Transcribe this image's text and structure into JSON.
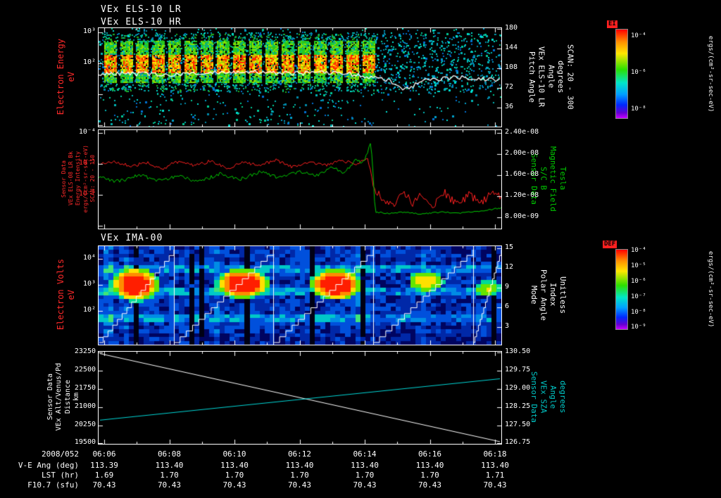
{
  "colors": {
    "background": "#000000",
    "axis": "#ffffff",
    "label_red": "#ff2a2a",
    "label_green": "#00cc00",
    "label_cyan": "#00c8c8",
    "trace_red": "#ff2020",
    "trace_green": "#00cc00",
    "trace_white": "#ffffff",
    "trace_cyan": "#00d8d8",
    "colorbar_tag_bg": "#ff2020"
  },
  "titles": {
    "els_lr": "VEx ELS-10 LR",
    "els_hr": "VEx ELS-10 HR",
    "ima": "VEx IMA-00"
  },
  "panel1": {
    "left_label_lines": [
      "Electron Energy",
      "eV"
    ],
    "left_ticks": [
      {
        "label": "10³",
        "t": 6
      },
      {
        "label": "10²",
        "t": 50
      }
    ],
    "right_ticks": [
      {
        "label": "180",
        "t": 1
      },
      {
        "label": "144",
        "t": 29
      },
      {
        "label": "108",
        "t": 57
      },
      {
        "label": "72",
        "t": 85
      },
      {
        "label": "36",
        "t": 113
      }
    ],
    "right_label_lines": [
      "Pitch Angle",
      "VEx ELS-10 LR",
      "Angle",
      "degrees",
      "SCAN: 20 - 300"
    ],
    "colorbar": {
      "tag": "EI",
      "ticks": [
        {
          "label": "10⁻⁴",
          "t": 10
        },
        {
          "label": "10⁻⁶",
          "t": 62
        },
        {
          "label": "10⁻⁸",
          "t": 114
        }
      ],
      "units": "ergs/(cm²-sr-sec-eV)"
    }
  },
  "panel2": {
    "left_label_lines": [
      "Sensor Data",
      "VEx ELS-08 LR Bk",
      "Energy Intensity",
      "ergs/(cm²-sr-sec-eV)",
      "SCAN: 20 - 150"
    ],
    "left_ticks": [
      {
        "label": "10⁻⁴",
        "t": 4,
        "color": "#ffffff"
      },
      {
        "label": "10⁻⁵",
        "t": 48,
        "color": "#ff2a2a"
      },
      {
        "label": "10⁻⁶",
        "t": 92,
        "color": "#ff2a2a"
      }
    ],
    "right_ticks": [
      {
        "label": "2.40e-08",
        "t": 4
      },
      {
        "label": "2.00e-08",
        "t": 34
      },
      {
        "label": "1.60e-08",
        "t": 64
      },
      {
        "label": "1.20e-08",
        "t": 94
      },
      {
        "label": "8.00e-09",
        "t": 124
      }
    ],
    "right_label_lines": [
      "Sensor Data",
      "S/C B",
      "Magnetic Field",
      "Tesla"
    ]
  },
  "panel3": {
    "left_label_lines": [
      "Electron Volts",
      "eV"
    ],
    "left_ticks": [
      {
        "label": "10⁴",
        "t": 18
      },
      {
        "label": "10³",
        "t": 55
      },
      {
        "label": "10²",
        "t": 92
      }
    ],
    "right_ticks": [
      {
        "label": "15",
        "t": 3
      },
      {
        "label": "12",
        "t": 31
      },
      {
        "label": "9",
        "t": 59
      },
      {
        "label": "6",
        "t": 87
      },
      {
        "label": "3",
        "t": 115
      }
    ],
    "right_label_lines": [
      "Mode",
      "Polar Angle",
      "Index",
      "Unitless"
    ],
    "colorbar": {
      "tag": "DEF",
      "ticks": [
        {
          "label": "10⁻⁴",
          "t": 2
        },
        {
          "label": "10⁻⁵",
          "t": 24
        },
        {
          "label": "10⁻⁶",
          "t": 46
        },
        {
          "label": "10⁻⁷",
          "t": 68
        },
        {
          "label": "10⁻⁸",
          "t": 90
        },
        {
          "label": "10⁻⁹",
          "t": 111
        }
      ],
      "units": "ergs/(cm²-sr-sec-eV)"
    }
  },
  "panel4": {
    "left_label_lines": [
      "Sensor Data",
      "VEx Alt/Venus/Pd",
      "Distance",
      "km"
    ],
    "left_ticks": [
      {
        "label": "23250",
        "t": 1
      },
      {
        "label": "22500",
        "t": 27
      },
      {
        "label": "21750",
        "t": 53
      },
      {
        "label": "21000",
        "t": 79
      },
      {
        "label": "20250",
        "t": 105
      },
      {
        "label": "19500",
        "t": 130
      }
    ],
    "right_ticks": [
      {
        "label": "130.50",
        "t": 1
      },
      {
        "label": "129.75",
        "t": 27
      },
      {
        "label": "129.00",
        "t": 53
      },
      {
        "label": "128.25",
        "t": 79
      },
      {
        "label": "127.50",
        "t": 105
      },
      {
        "label": "126.75",
        "t": 130
      }
    ],
    "right_label_lines": [
      "Sensor Data",
      "VEx SZA",
      "Angle",
      "degrees"
    ]
  },
  "table": {
    "rows": [
      {
        "label": "2008/052",
        "values": [
          "06:06",
          "06:08",
          "06:10",
          "06:12",
          "06:14",
          "06:16",
          "06:18"
        ]
      },
      {
        "label": "V-E Ang (deg)",
        "values": [
          "113.39",
          "113.40",
          "113.40",
          "113.40",
          "113.40",
          "113.40",
          "113.40"
        ]
      },
      {
        "label": "LST (hr)",
        "values": [
          "1.69",
          "1.70",
          "1.70",
          "1.70",
          "1.70",
          "1.70",
          "1.71"
        ]
      },
      {
        "label": "F10.7 (sfu)",
        "values": [
          "70.43",
          "70.43",
          "70.43",
          "70.43",
          "70.43",
          "70.43",
          "70.43"
        ]
      }
    ]
  },
  "chart_data": [
    {
      "type": "heatmap",
      "panel": "VEx ELS-10 LR/HR electron energy-time spectrogram",
      "x_ticks": [
        "06:06",
        "06:08",
        "06:10",
        "06:12",
        "06:14",
        "06:16",
        "06:18"
      ],
      "y_axis": {
        "label": "Electron Energy (eV)",
        "scale": "log",
        "ticks": [
          "10³",
          "10²"
        ]
      },
      "right_axis": {
        "label": "Pitch Angle VEx ELS-10 LR Angle degrees SCAN: 20 - 300",
        "ticks": [
          180,
          144,
          108,
          72,
          36
        ]
      },
      "colorbar": {
        "tag": "EI",
        "units": "ergs/(cm²-sr-sec-eV)",
        "ticks": [
          "10⁻⁴",
          "10⁻⁶",
          "10⁻⁸"
        ]
      },
      "transition_frac": 0.683,
      "blocks": {
        "start_frac": 0.014,
        "end_frac": 0.687,
        "period_frac": 0.0402,
        "width_frac": 0.0297,
        "y_top_frac": 0.13,
        "y_bot_frac": 0.545,
        "core_top_frac": 0.27,
        "core_bot_frac": 0.445
      },
      "white_line": [
        [
          0,
          0.46
        ],
        [
          0.2,
          0.47
        ],
        [
          0.35,
          0.44
        ],
        [
          0.5,
          0.46
        ],
        [
          0.6,
          0.45
        ],
        [
          0.68,
          0.5
        ],
        [
          0.72,
          0.53
        ],
        [
          0.76,
          0.63
        ],
        [
          0.8,
          0.54
        ],
        [
          0.88,
          0.5
        ],
        [
          1,
          0.53
        ]
      ]
    },
    {
      "type": "line",
      "panel": "ELS energy intensity (red, log) and S/C magnetic field (green, linear)",
      "left_axis": {
        "scale": "log",
        "ticks": [
          "10⁻⁴",
          "10⁻⁵",
          "10⁻⁶"
        ]
      },
      "right_axis": {
        "label": "S/C B Magnetic Field (Tesla)",
        "top": 2.4e-08,
        "bottom": 8e-09
      },
      "transition_frac": 0.683,
      "series": [
        {
          "name": "VEx ELS-08 LR Bk Energy Intensity",
          "color": "red",
          "points_log10": [
            [
              0,
              -5.0
            ],
            [
              0.04,
              -4.92
            ],
            [
              0.08,
              -5.08
            ],
            [
              0.12,
              -4.95
            ],
            [
              0.16,
              -5.2
            ],
            [
              0.19,
              -4.93
            ],
            [
              0.24,
              -5.05
            ],
            [
              0.28,
              -4.9
            ],
            [
              0.32,
              -5.15
            ],
            [
              0.36,
              -4.95
            ],
            [
              0.4,
              -5.05
            ],
            [
              0.44,
              -4.88
            ],
            [
              0.48,
              -5.1
            ],
            [
              0.52,
              -4.95
            ],
            [
              0.56,
              -5.05
            ],
            [
              0.6,
              -4.9
            ],
            [
              0.64,
              -5.0
            ],
            [
              0.667,
              -4.82
            ],
            [
              0.675,
              -5.2
            ],
            [
              0.682,
              -5.7
            ],
            [
              0.7,
              -6.1
            ],
            [
              0.73,
              -6.35
            ],
            [
              0.755,
              -5.85
            ],
            [
              0.78,
              -6.3
            ],
            [
              0.8,
              -5.9
            ],
            [
              0.83,
              -6.35
            ],
            [
              0.86,
              -5.95
            ],
            [
              0.89,
              -6.3
            ],
            [
              0.92,
              -6.0
            ],
            [
              0.95,
              -6.3
            ],
            [
              0.975,
              -5.9
            ],
            [
              1,
              -6.1
            ]
          ]
        },
        {
          "name": "S/C B",
          "color": "green",
          "points_1e8_tesla": [
            [
              0,
              1.55
            ],
            [
              0.05,
              1.48
            ],
            [
              0.1,
              1.6
            ],
            [
              0.15,
              1.5
            ],
            [
              0.2,
              1.58
            ],
            [
              0.25,
              1.47
            ],
            [
              0.3,
              1.62
            ],
            [
              0.35,
              1.52
            ],
            [
              0.4,
              1.66
            ],
            [
              0.45,
              1.55
            ],
            [
              0.5,
              1.68
            ],
            [
              0.54,
              1.58
            ],
            [
              0.58,
              1.75
            ],
            [
              0.61,
              1.65
            ],
            [
              0.64,
              1.9
            ],
            [
              0.655,
              1.8
            ],
            [
              0.668,
              2.05
            ],
            [
              0.675,
              2.18
            ],
            [
              0.68,
              1.9
            ],
            [
              0.684,
              1.2
            ],
            [
              0.688,
              0.9
            ],
            [
              0.72,
              0.87
            ],
            [
              0.76,
              0.9
            ],
            [
              0.8,
              0.86
            ],
            [
              0.85,
              0.9
            ],
            [
              0.9,
              0.88
            ],
            [
              0.95,
              0.92
            ],
            [
              1,
              0.98
            ]
          ]
        }
      ]
    },
    {
      "type": "heatmap",
      "panel": "VEx IMA-00 ion energy-time spectrogram",
      "y_axis": {
        "label": "Electron Volts (eV)",
        "scale": "log",
        "ticks": [
          "10⁴",
          "10³",
          "10²"
        ]
      },
      "right_axis": {
        "label": "Mode Polar Angle Index Unitless",
        "ticks": [
          15,
          12,
          9,
          6,
          3
        ]
      },
      "colorbar": {
        "tag": "DEF",
        "units": "ergs/(cm²-sr-sec-eV)",
        "ticks": [
          "10⁻⁴",
          "10⁻⁵",
          "10⁻⁶",
          "10⁻⁷",
          "10⁻⁸",
          "10⁻⁹"
        ]
      },
      "segments_frac": [
        0,
        0.187,
        0.434,
        0.682,
        0.93,
        1
      ],
      "stair_steps": 16,
      "n_rows": 26,
      "n_cols": 80,
      "bright_rows": [
        5,
        6,
        11,
        12,
        18,
        19
      ],
      "blobs": [
        {
          "cx": 0.091,
          "cy": 0.39,
          "rx": 0.066,
          "ry": 0.19,
          "s": 1.0
        },
        {
          "cx": 0.358,
          "cy": 0.38,
          "rx": 0.073,
          "ry": 0.17,
          "s": 1.0
        },
        {
          "cx": 0.589,
          "cy": 0.39,
          "rx": 0.07,
          "ry": 0.18,
          "s": 1.0
        },
        {
          "cx": 0.813,
          "cy": 0.36,
          "rx": 0.052,
          "ry": 0.13,
          "s": 0.55
        },
        {
          "cx": 0.965,
          "cy": 0.43,
          "rx": 0.038,
          "ry": 0.1,
          "s": 0.45
        }
      ]
    },
    {
      "type": "line",
      "panel": "VEx altitude (white) and solar zenith angle (cyan)",
      "left_axis": {
        "label": "VEx Alt/Venus/Pd Distance (km)",
        "top": 23250,
        "bottom": 19500
      },
      "right_axis": {
        "label": "VEx SZA Angle (degrees)",
        "top": 130.5,
        "bottom": 126.75
      },
      "series": [
        {
          "name": "VEx Alt/Venus/Pd",
          "color": "white",
          "points": [
            [
              0,
              23200
            ],
            [
              1,
              19560
            ]
          ]
        },
        {
          "name": "VEx SZA",
          "color": "cyan",
          "points": [
            [
              0,
              127.7
            ],
            [
              1,
              129.41
            ]
          ]
        }
      ]
    }
  ],
  "render": {
    "seed": 1337
  }
}
